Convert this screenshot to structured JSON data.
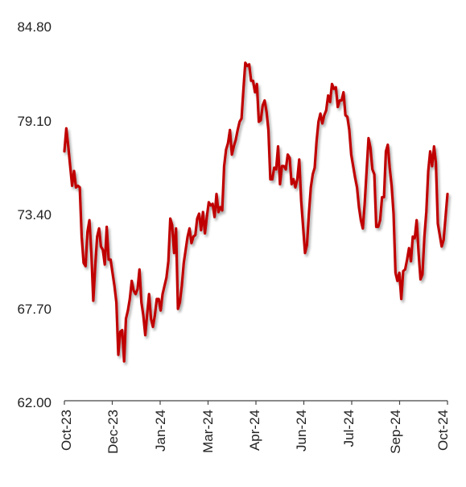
{
  "chart_data": {
    "type": "line",
    "title": "",
    "xlabel": "",
    "ylabel": "",
    "ylim": [
      62.0,
      84.8
    ],
    "yticks": [
      "84.80",
      "79.10",
      "73.40",
      "67.70",
      "62.00"
    ],
    "xticks": [
      "Oct-23",
      "Dec-23",
      "Jan-24",
      "Mar-24",
      "Apr-24",
      "Jun-24",
      "Jul-24",
      "Sep-24",
      "Oct-24"
    ],
    "grid": false,
    "legend": "none",
    "line_color": "#c00000",
    "series": [
      {
        "values": [
          77.2,
          78.6,
          77.5,
          76.3,
          75.1,
          76.0,
          75.0,
          75.1,
          75.0,
          72.0,
          70.4,
          70.2,
          72.3,
          73.0,
          71.0,
          68.1,
          70.2,
          72.0,
          72.5,
          71.4,
          71.2,
          70.3,
          72.6,
          70.6,
          70.6,
          69.8,
          69.0,
          68.0,
          64.8,
          66.2,
          66.3,
          64.4,
          67.0,
          67.5,
          68.2,
          69.3,
          68.7,
          68.5,
          68.8,
          70.0,
          68.0,
          67.2,
          66.0,
          67.3,
          68.5,
          67.0,
          66.5,
          67.2,
          68.2,
          68.2,
          67.5,
          68.5,
          69.0,
          69.5,
          70.5,
          73.1,
          72.7,
          71.0,
          72.5,
          67.6,
          68.0,
          69.0,
          70.4,
          71.2,
          72.0,
          72.5,
          71.6,
          72.0,
          72.1,
          73.1,
          73.4,
          72.4,
          73.5,
          72.2,
          73.2,
          74.1,
          73.9,
          74.0,
          73.2,
          74.6,
          73.5,
          73.8,
          73.6,
          76.3,
          77.3,
          77.7,
          78.5,
          77.0,
          77.5,
          77.9,
          78.5,
          79.0,
          79.2,
          81.0,
          82.6,
          82.4,
          82.5,
          81.5,
          81.5,
          80.8,
          81.3,
          79.0,
          79.1,
          80.0,
          80.3,
          79.6,
          78.5,
          75.5,
          75.5,
          76.2,
          76.1,
          77.5,
          75.2,
          76.3,
          76.3,
          76.1,
          77.0,
          76.8,
          75.2,
          75.5,
          75.0,
          75.5,
          76.7,
          74.2,
          72.6,
          71.0,
          71.5,
          73.4,
          75.0,
          75.8,
          76.2,
          77.8,
          79.0,
          79.5,
          78.9,
          79.4,
          79.7,
          80.6,
          80.2,
          81.3,
          81.0,
          81.1,
          79.9,
          80.3,
          80.3,
          80.8,
          79.4,
          79.3,
          78.5,
          77.0,
          76.3,
          75.6,
          75.0,
          73.8,
          73.0,
          72.5,
          74.0,
          76.0,
          78.0,
          77.4,
          76.1,
          75.8,
          72.6,
          72.6,
          73.0,
          74.4,
          74.4,
          77.2,
          77.6,
          76.2,
          75.1,
          73.4,
          69.8,
          69.3,
          69.8,
          68.2,
          69.9,
          70.0,
          70.6,
          71.3,
          70.5,
          72.0,
          71.9,
          73.0,
          71.0,
          69.4,
          69.7,
          72.0,
          73.5,
          76.0,
          77.2,
          76.3,
          77.5,
          76.5,
          72.8,
          72.1,
          71.4,
          71.8,
          73.2,
          74.6
        ]
      }
    ]
  }
}
